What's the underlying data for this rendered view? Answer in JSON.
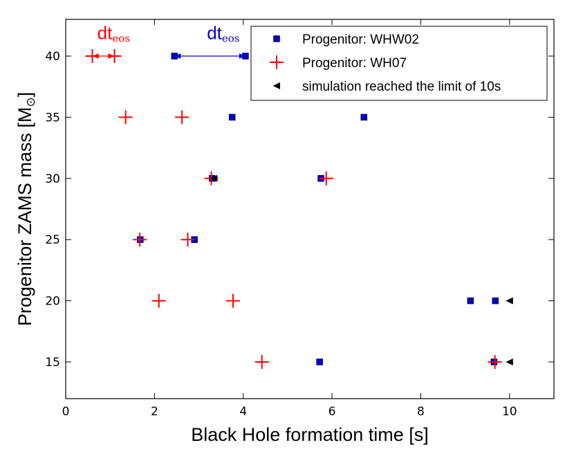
{
  "chart_data": {
    "type": "scatter",
    "title": "",
    "xlabel": "Black Hole formation time [s]",
    "ylabel_main": "Progenitor ZAMS mass [M",
    "ylabel_sub": "⊙",
    "ylabel_end": "]",
    "xlim": [
      0,
      11
    ],
    "ylim": [
      12,
      43
    ],
    "xticks": [
      0,
      2,
      4,
      6,
      8,
      10
    ],
    "yticks": [
      15,
      20,
      25,
      30,
      35,
      40
    ],
    "grid": false,
    "legend_position": "top-right",
    "series": [
      {
        "name": "Progenitor: WHW02",
        "marker": "square",
        "color": "#0000cc",
        "points": [
          {
            "x": 2.45,
            "y": 40
          },
          {
            "x": 4.05,
            "y": 40
          },
          {
            "x": 3.75,
            "y": 35
          },
          {
            "x": 6.72,
            "y": 35
          },
          {
            "x": 3.3,
            "y": 30
          },
          {
            "x": 5.75,
            "y": 30
          },
          {
            "x": 1.68,
            "y": 25
          },
          {
            "x": 2.9,
            "y": 25
          },
          {
            "x": 9.12,
            "y": 20
          },
          {
            "x": 9.68,
            "y": 20
          },
          {
            "x": 5.72,
            "y": 15
          },
          {
            "x": 9.65,
            "y": 15
          }
        ]
      },
      {
        "name": "Progenitor: WH07",
        "marker": "plus",
        "color": "#ff0000",
        "points": [
          {
            "x": 0.6,
            "y": 40
          },
          {
            "x": 1.1,
            "y": 40
          },
          {
            "x": 1.35,
            "y": 35
          },
          {
            "x": 2.62,
            "y": 35
          },
          {
            "x": 3.28,
            "y": 30
          },
          {
            "x": 5.87,
            "y": 30
          },
          {
            "x": 1.67,
            "y": 25
          },
          {
            "x": 2.75,
            "y": 25
          },
          {
            "x": 2.1,
            "y": 20
          },
          {
            "x": 3.77,
            "y": 20
          },
          {
            "x": 4.42,
            "y": 15
          },
          {
            "x": 9.67,
            "y": 15
          }
        ]
      },
      {
        "name": "simulation reached the limit of 10s",
        "marker": "triangle-left",
        "color": "#000000",
        "points": [
          {
            "x": 3.34,
            "y": 30
          },
          {
            "x": 10.0,
            "y": 20
          },
          {
            "x": 10.0,
            "y": 15
          }
        ]
      }
    ],
    "annotations": [
      {
        "main": "dt",
        "sub": "eos",
        "color": "#ff0000",
        "x1": 0.6,
        "x2": 1.1,
        "y": 40,
        "text_x": 1.08,
        "text_y": 41.4
      },
      {
        "main": "dt",
        "sub": "eos",
        "color": "#0000cc",
        "x1": 2.45,
        "x2": 4.05,
        "y": 40,
        "text_x": 3.55,
        "text_y": 41.4
      }
    ]
  }
}
